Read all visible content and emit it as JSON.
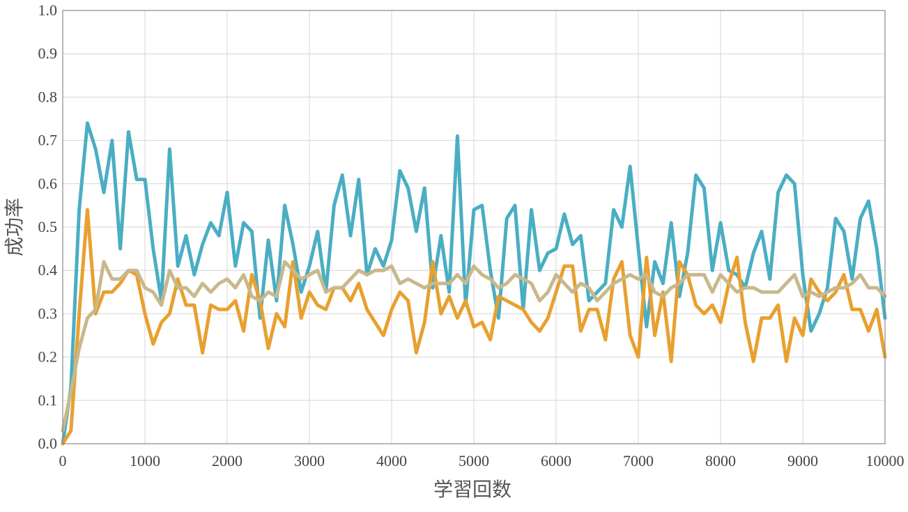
{
  "chart_data": {
    "type": "line",
    "title": "",
    "xlabel": "学習回数",
    "ylabel": "成功率",
    "xlim": [
      0,
      10000
    ],
    "ylim": [
      0.0,
      1.0
    ],
    "x_ticks": [
      "0",
      "1000",
      "2000",
      "3000",
      "4000",
      "5000",
      "6000",
      "7000",
      "8000",
      "9000",
      "10000"
    ],
    "y_ticks": [
      "0.0",
      "0.1",
      "0.2",
      "0.3",
      "0.4",
      "0.5",
      "0.6",
      "0.7",
      "0.8",
      "0.9",
      "1.0"
    ],
    "grid": true,
    "legend": "none",
    "x": [
      0,
      100,
      200,
      300,
      400,
      500,
      600,
      700,
      800,
      900,
      1000,
      1100,
      1200,
      1300,
      1400,
      1500,
      1600,
      1700,
      1800,
      1900,
      2000,
      2100,
      2200,
      2300,
      2400,
      2500,
      2600,
      2700,
      2800,
      2900,
      3000,
      3100,
      3200,
      3300,
      3400,
      3500,
      3600,
      3700,
      3800,
      3900,
      4000,
      4100,
      4200,
      4300,
      4400,
      4500,
      4600,
      4700,
      4800,
      4900,
      5000,
      5100,
      5200,
      5300,
      5400,
      5500,
      5600,
      5700,
      5800,
      5900,
      6000,
      6100,
      6200,
      6300,
      6400,
      6500,
      6600,
      6700,
      6800,
      6900,
      7000,
      7100,
      7200,
      7300,
      7400,
      7500,
      7600,
      7700,
      7800,
      7900,
      8000,
      8100,
      8200,
      8300,
      8400,
      8500,
      8600,
      8700,
      8800,
      8900,
      9000,
      9100,
      9200,
      9300,
      9400,
      9500,
      9600,
      9700,
      9800,
      9900,
      10000
    ],
    "series": [
      {
        "color": "#4aaec3",
        "values": [
          0.0,
          0.13,
          0.54,
          0.74,
          0.68,
          0.58,
          0.7,
          0.45,
          0.72,
          0.61,
          0.61,
          0.45,
          0.33,
          0.68,
          0.41,
          0.48,
          0.39,
          0.46,
          0.51,
          0.48,
          0.58,
          0.41,
          0.51,
          0.49,
          0.29,
          0.47,
          0.33,
          0.55,
          0.46,
          0.35,
          0.41,
          0.49,
          0.35,
          0.55,
          0.62,
          0.48,
          0.61,
          0.39,
          0.45,
          0.41,
          0.47,
          0.63,
          0.59,
          0.49,
          0.59,
          0.36,
          0.48,
          0.35,
          0.71,
          0.32,
          0.54,
          0.55,
          0.4,
          0.29,
          0.52,
          0.55,
          0.31,
          0.54,
          0.4,
          0.44,
          0.45,
          0.53,
          0.46,
          0.48,
          0.33,
          0.35,
          0.37,
          0.54,
          0.5,
          0.64,
          0.45,
          0.27,
          0.42,
          0.37,
          0.51,
          0.34,
          0.44,
          0.62,
          0.59,
          0.4,
          0.51,
          0.4,
          0.39,
          0.36,
          0.44,
          0.49,
          0.38,
          0.58,
          0.62,
          0.6,
          0.39,
          0.26,
          0.3,
          0.36,
          0.52,
          0.49,
          0.38,
          0.52,
          0.56,
          0.45,
          0.29
        ]
      },
      {
        "color": "#e8a030",
        "values": [
          0.0,
          0.03,
          0.3,
          0.54,
          0.3,
          0.35,
          0.35,
          0.37,
          0.4,
          0.39,
          0.3,
          0.23,
          0.28,
          0.3,
          0.38,
          0.32,
          0.32,
          0.21,
          0.32,
          0.31,
          0.31,
          0.33,
          0.26,
          0.39,
          0.33,
          0.22,
          0.3,
          0.27,
          0.42,
          0.29,
          0.35,
          0.32,
          0.31,
          0.36,
          0.36,
          0.33,
          0.37,
          0.31,
          0.28,
          0.25,
          0.31,
          0.35,
          0.33,
          0.21,
          0.28,
          0.42,
          0.3,
          0.34,
          0.29,
          0.33,
          0.27,
          0.28,
          0.24,
          0.34,
          0.33,
          0.32,
          0.31,
          0.28,
          0.26,
          0.29,
          0.35,
          0.41,
          0.41,
          0.26,
          0.31,
          0.31,
          0.24,
          0.38,
          0.42,
          0.25,
          0.2,
          0.43,
          0.25,
          0.35,
          0.19,
          0.42,
          0.39,
          0.32,
          0.3,
          0.32,
          0.28,
          0.37,
          0.43,
          0.28,
          0.19,
          0.29,
          0.29,
          0.32,
          0.19,
          0.29,
          0.25,
          0.38,
          0.35,
          0.33,
          0.35,
          0.39,
          0.31,
          0.31,
          0.26,
          0.31,
          0.2
        ]
      },
      {
        "color": "#c8b88c",
        "values": [
          0.03,
          0.12,
          0.22,
          0.29,
          0.31,
          0.42,
          0.38,
          0.38,
          0.4,
          0.4,
          0.36,
          0.35,
          0.32,
          0.4,
          0.36,
          0.36,
          0.34,
          0.37,
          0.35,
          0.37,
          0.38,
          0.36,
          0.39,
          0.34,
          0.33,
          0.35,
          0.34,
          0.42,
          0.4,
          0.38,
          0.39,
          0.4,
          0.35,
          0.36,
          0.36,
          0.38,
          0.4,
          0.39,
          0.4,
          0.4,
          0.41,
          0.37,
          0.38,
          0.37,
          0.36,
          0.37,
          0.37,
          0.37,
          0.39,
          0.37,
          0.41,
          0.39,
          0.38,
          0.36,
          0.37,
          0.39,
          0.38,
          0.37,
          0.33,
          0.35,
          0.39,
          0.37,
          0.35,
          0.37,
          0.36,
          0.33,
          0.35,
          0.37,
          0.38,
          0.39,
          0.38,
          0.39,
          0.35,
          0.34,
          0.36,
          0.37,
          0.39,
          0.39,
          0.39,
          0.35,
          0.39,
          0.37,
          0.35,
          0.36,
          0.36,
          0.35,
          0.35,
          0.35,
          0.37,
          0.39,
          0.34,
          0.35,
          0.34,
          0.35,
          0.36,
          0.36,
          0.37,
          0.39,
          0.36,
          0.36,
          0.34
        ]
      }
    ]
  }
}
